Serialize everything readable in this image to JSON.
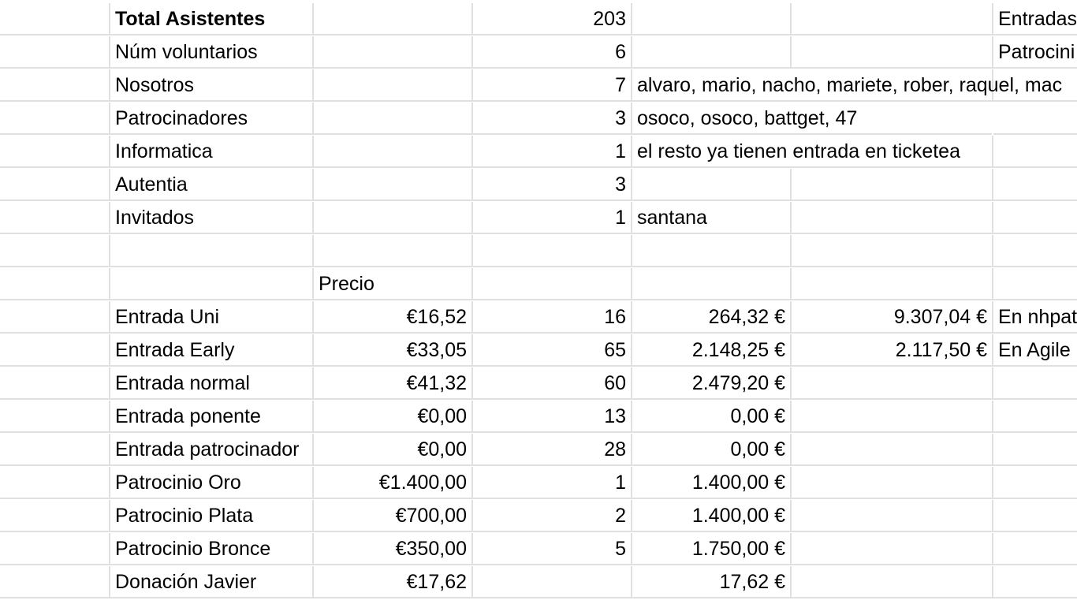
{
  "rows": [
    {
      "label": "Total Asistentes",
      "count": "203",
      "note": "",
      "right_label": "Entradas"
    },
    {
      "label": "Núm voluntarios",
      "count": "6",
      "note": "",
      "right_label": "Patrocini"
    },
    {
      "label": "Nosotros",
      "count": "7",
      "note": "alvaro, mario, nacho, mariete, rober, raquel, mac"
    },
    {
      "label": "Patrocinadores",
      "count": "3",
      "note": "osoco, osoco, battget, 47"
    },
    {
      "label": "Informatica",
      "count": "1",
      "note": "el resto ya tienen entrada en ticketea"
    },
    {
      "label": "Autentia",
      "count": "3",
      "note": ""
    },
    {
      "label": "Invitados",
      "count": "1",
      "note": "santana"
    },
    {
      "label": "",
      "count": "",
      "note": ""
    },
    {
      "label": "",
      "price_header": "Precio"
    },
    {
      "label": "Entrada Uni",
      "price": "€16,52",
      "qty": "16",
      "total": "264,32 €",
      "summary": "9.307,04 €",
      "summary_label": "En nhpat"
    },
    {
      "label": "Entrada Early",
      "price": "€33,05",
      "qty": "65",
      "total": "2.148,25 €",
      "summary": "2.117,50 €",
      "summary_label": "En Agile"
    },
    {
      "label": "Entrada normal",
      "price": "€41,32",
      "qty": "60",
      "total": "2.479,20 €"
    },
    {
      "label": "Entrada ponente",
      "price": "€0,00",
      "qty": "13",
      "total": "0,00 €"
    },
    {
      "label": "Entrada patrocinador",
      "price": "€0,00",
      "qty": "28",
      "total": "0,00 €"
    },
    {
      "label": "Patrocinio Oro",
      "price": "€1.400,00",
      "qty": "1",
      "total": "1.400,00 €"
    },
    {
      "label": "Patrocinio Plata",
      "price": "€700,00",
      "qty": "2",
      "total": "1.400,00 €"
    },
    {
      "label": "Patrocinio Bronce",
      "price": "€350,00",
      "qty": "5",
      "total": "1.750,00 €"
    },
    {
      "label": "Donación Javier",
      "price": "€17,62",
      "qty": "",
      "total": "17,62 €"
    }
  ],
  "colors": {
    "gridline": "#e0e0e0",
    "text": "#000000",
    "background": "#ffffff"
  }
}
